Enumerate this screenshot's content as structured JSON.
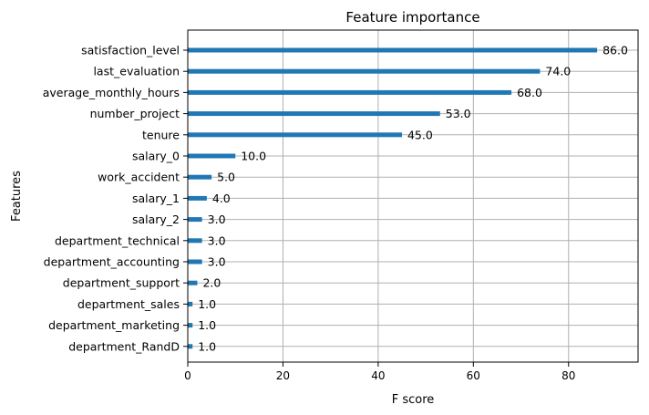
{
  "chart_data": {
    "type": "bar",
    "orientation": "horizontal",
    "title": "Feature importance",
    "xlabel": "F score",
    "ylabel": "Features",
    "xlim": [
      0,
      94.6
    ],
    "xticks": [
      0,
      20,
      40,
      60,
      80
    ],
    "grid": true,
    "bar_color": "#1f77b4",
    "categories": [
      "satisfaction_level",
      "last_evaluation",
      "average_monthly_hours",
      "number_project",
      "tenure",
      "salary_0",
      "work_accident",
      "salary_1",
      "salary_2",
      "department_technical",
      "department_accounting",
      "department_support",
      "department_sales",
      "department_marketing",
      "department_RandD"
    ],
    "values": [
      86,
      74,
      68,
      53,
      45,
      10,
      5,
      4,
      3,
      3,
      3,
      2,
      1,
      1,
      1
    ],
    "value_labels": [
      "86.0",
      "74.0",
      "68.0",
      "53.0",
      "45.0",
      "10.0",
      "5.0",
      "4.0",
      "3.0",
      "3.0",
      "3.0",
      "2.0",
      "1.0",
      "1.0",
      "1.0"
    ]
  }
}
